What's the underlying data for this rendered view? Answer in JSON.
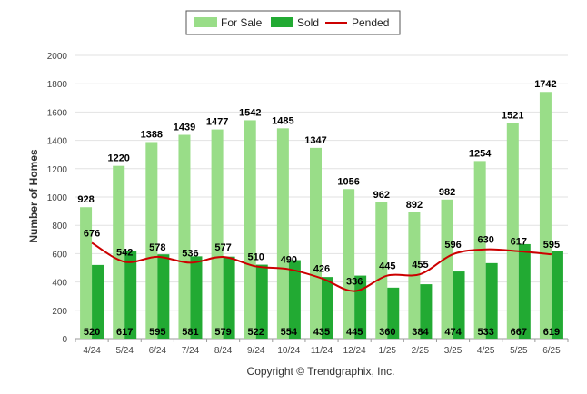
{
  "chart_data": {
    "type": "bar",
    "categories": [
      "4/24",
      "5/24",
      "6/24",
      "7/24",
      "8/24",
      "9/24",
      "10/24",
      "11/24",
      "12/24",
      "1/25",
      "2/25",
      "3/25",
      "4/25",
      "5/25",
      "6/25"
    ],
    "series": [
      {
        "name": "For Sale",
        "type": "bar",
        "color": "#99dd88",
        "values": [
          928,
          1220,
          1388,
          1439,
          1477,
          1542,
          1485,
          1347,
          1056,
          962,
          892,
          982,
          1254,
          1521,
          1742
        ]
      },
      {
        "name": "Sold",
        "type": "bar",
        "color": "#22aa33",
        "values": [
          520,
          617,
          595,
          581,
          579,
          522,
          554,
          435,
          445,
          360,
          384,
          474,
          533,
          667,
          619
        ]
      },
      {
        "name": "Pended",
        "type": "line",
        "color": "#cc0000",
        "values": [
          676,
          542,
          578,
          536,
          577,
          510,
          490,
          426,
          336,
          445,
          455,
          596,
          630,
          617,
          595
        ]
      }
    ],
    "ylabel": "Number of Homes",
    "ylim": [
      0,
      2000
    ],
    "yticks": [
      0,
      200,
      400,
      600,
      800,
      1000,
      1200,
      1400,
      1600,
      1800,
      2000
    ],
    "grid": true,
    "legend_position": "top-center"
  },
  "footer": "Copyright © Trendgraphix, Inc."
}
